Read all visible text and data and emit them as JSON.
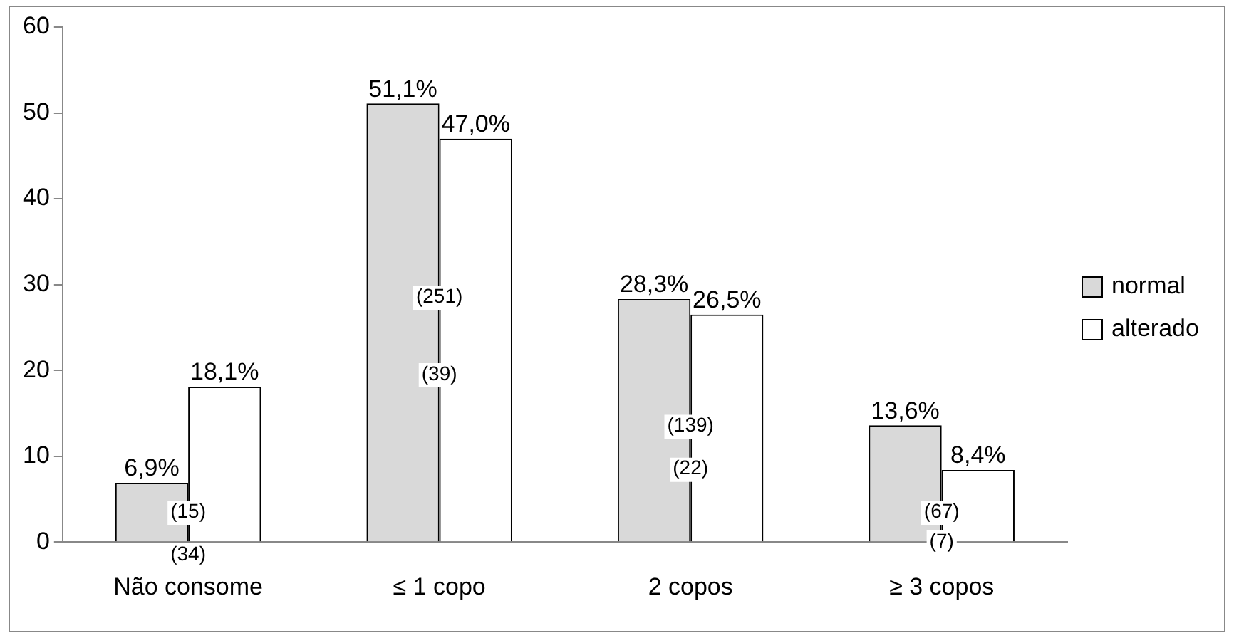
{
  "chart_data": {
    "type": "bar",
    "categories": [
      "Não consome",
      "≤ 1 copo",
      "2 copos",
      "≥ 3 copos"
    ],
    "series": [
      {
        "name": "normal",
        "color": "#d9d9d9",
        "values": [
          6.9,
          51.1,
          28.3,
          13.6
        ],
        "value_labels": [
          "6,9%",
          "51,1%",
          "28,3%",
          "13,6%"
        ]
      },
      {
        "name": "alterado",
        "color": "#ffffff",
        "values": [
          18.1,
          47.0,
          26.5,
          8.4
        ],
        "value_labels": [
          "18,1%",
          "47,0%",
          "26,5%",
          "8,4%"
        ]
      }
    ],
    "annotations": [
      {
        "text": "(34)",
        "x": "Não consome",
        "y": 0
      },
      {
        "text": "(15)",
        "x": "Não consome",
        "y": 5
      },
      {
        "text": "(251)",
        "x": "≤ 1 copo",
        "y": 30
      },
      {
        "text": "(39)",
        "x": "≤ 1 copo",
        "y": 21
      },
      {
        "text": "(139)",
        "x": "2 copos",
        "y": 15
      },
      {
        "text": "(22)",
        "x": "2 copos",
        "y": 10
      },
      {
        "text": "(67)",
        "x": "≥ 3 copos",
        "y": 5
      },
      {
        "text": "(7)",
        "x": "≥ 3 copos",
        "y": 1.5
      }
    ],
    "ylim": [
      0,
      60
    ],
    "yticks": [
      0,
      10,
      20,
      30,
      40,
      50,
      60
    ],
    "grid": false,
    "legend": "right"
  }
}
